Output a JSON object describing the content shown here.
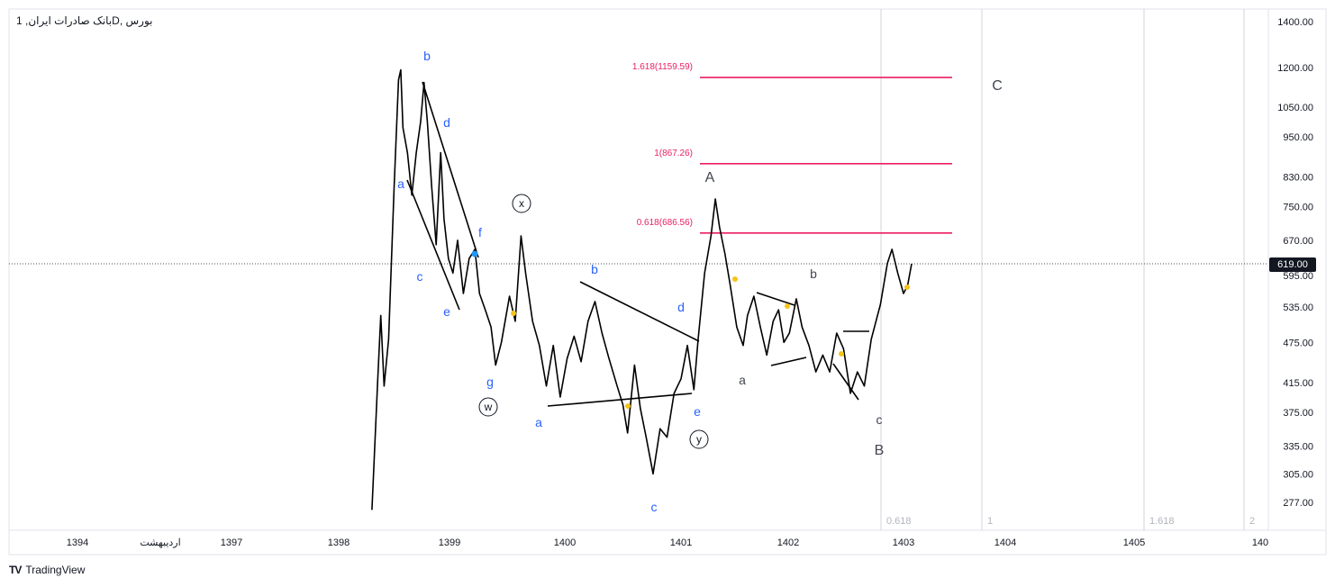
{
  "window": {
    "title": "بورس ,Dبانک صادرات ایران, 1",
    "brand": "TradingView"
  },
  "chart_data": {
    "type": "line",
    "title": "بورس ,Dبانک صادرات ایران, 1",
    "y_scale": "log",
    "ylim": [
      265,
      1420
    ],
    "y_ticks": [
      1400.0,
      1200.0,
      1050.0,
      950.0,
      830.0,
      750.0,
      670.0,
      595.0,
      535.0,
      475.0,
      415.0,
      375.0,
      335.0,
      305.0,
      277.0
    ],
    "x_ticks": [
      "1394",
      "اردیبهشت",
      "1397",
      "1398",
      "1399",
      "1400",
      "1401",
      "1402",
      "1403",
      "1404",
      "1405",
      "140"
    ],
    "last_price": "619.00",
    "colors": {
      "price_line": "#000000",
      "fib_line": "#e91e63",
      "wave_label": "#2962ff",
      "major_label": "#434651",
      "yellow_marker": "#f5c518"
    },
    "series": [
      {
        "points": [
          [
            1398.3,
            270
          ],
          [
            1398.35,
            410
          ],
          [
            1398.38,
            520
          ],
          [
            1398.41,
            410
          ],
          [
            1398.45,
            480
          ],
          [
            1398.5,
            800
          ],
          [
            1398.54,
            1150
          ],
          [
            1398.56,
            1190
          ],
          [
            1398.58,
            980
          ],
          [
            1398.62,
            900
          ],
          [
            1398.66,
            780
          ],
          [
            1398.7,
            900
          ],
          [
            1398.74,
            1000
          ],
          [
            1398.77,
            1140
          ],
          [
            1398.8,
            1000
          ],
          [
            1398.84,
            800
          ],
          [
            1398.88,
            660
          ],
          [
            1398.92,
            900
          ],
          [
            1398.95,
            720
          ],
          [
            1398.99,
            630
          ],
          [
            1399.03,
            600
          ],
          [
            1399.07,
            670
          ],
          [
            1399.12,
            560
          ],
          [
            1399.17,
            630
          ],
          [
            1399.22,
            650
          ],
          [
            1399.26,
            560
          ],
          [
            1399.31,
            530
          ],
          [
            1399.36,
            500
          ],
          [
            1399.4,
            440
          ],
          [
            1399.45,
            475
          ],
          [
            1399.52,
            555
          ],
          [
            1399.57,
            510
          ],
          [
            1399.62,
            680
          ],
          [
            1399.66,
            600
          ],
          [
            1399.72,
            510
          ],
          [
            1399.78,
            470
          ],
          [
            1399.84,
            410
          ],
          [
            1399.9,
            470
          ],
          [
            1399.96,
            395
          ],
          [
            1400.02,
            450
          ],
          [
            1400.08,
            485
          ],
          [
            1400.14,
            445
          ],
          [
            1400.2,
            510
          ],
          [
            1400.26,
            545
          ],
          [
            1400.32,
            490
          ],
          [
            1400.38,
            450
          ],
          [
            1400.45,
            410
          ],
          [
            1400.5,
            385
          ],
          [
            1400.54,
            350
          ],
          [
            1400.6,
            440
          ],
          [
            1400.65,
            380
          ],
          [
            1400.7,
            345
          ],
          [
            1400.76,
            305
          ],
          [
            1400.82,
            355
          ],
          [
            1400.88,
            345
          ],
          [
            1400.94,
            400
          ],
          [
            1401.0,
            420
          ],
          [
            1401.06,
            470
          ],
          [
            1401.12,
            405
          ],
          [
            1401.16,
            480
          ],
          [
            1401.22,
            600
          ],
          [
            1401.28,
            680
          ],
          [
            1401.32,
            770
          ],
          [
            1401.36,
            700
          ],
          [
            1401.41,
            640
          ],
          [
            1401.46,
            575
          ],
          [
            1401.52,
            500
          ],
          [
            1401.58,
            470
          ],
          [
            1401.62,
            520
          ],
          [
            1401.68,
            555
          ],
          [
            1401.74,
            500
          ],
          [
            1401.8,
            455
          ],
          [
            1401.86,
            510
          ],
          [
            1401.91,
            530
          ],
          [
            1401.96,
            475
          ],
          [
            1402.01,
            490
          ],
          [
            1402.07,
            550
          ],
          [
            1402.12,
            500
          ],
          [
            1402.18,
            470
          ],
          [
            1402.24,
            430
          ],
          [
            1402.3,
            455
          ],
          [
            1402.36,
            430
          ],
          [
            1402.42,
            490
          ],
          [
            1402.48,
            465
          ],
          [
            1402.54,
            400
          ],
          [
            1402.6,
            430
          ],
          [
            1402.66,
            410
          ],
          [
            1402.72,
            480
          ],
          [
            1402.8,
            540
          ],
          [
            1402.86,
            620
          ],
          [
            1402.9,
            650
          ],
          [
            1402.95,
            600
          ],
          [
            1403.0,
            560
          ],
          [
            1403.04,
            575
          ],
          [
            1403.08,
            619
          ]
        ]
      }
    ],
    "fib_levels": [
      {
        "label": "1.618(1159.59)",
        "value": 1159.59
      },
      {
        "label": "1(867.26)",
        "value": 867.26
      },
      {
        "label": "0.618(686.56)",
        "value": 686.56
      }
    ],
    "time_fib_labels": [
      "0.618",
      "1",
      "1.618",
      "2"
    ],
    "wave_labels": {
      "blue": [
        "b",
        "d",
        "a",
        "f",
        "c",
        "e",
        "g",
        "b",
        "d",
        "a",
        "e",
        "c"
      ],
      "circled": [
        "x",
        "w",
        "y"
      ],
      "major": [
        "A",
        "C",
        "B"
      ],
      "gray": [
        "b",
        "a",
        "c"
      ]
    }
  }
}
